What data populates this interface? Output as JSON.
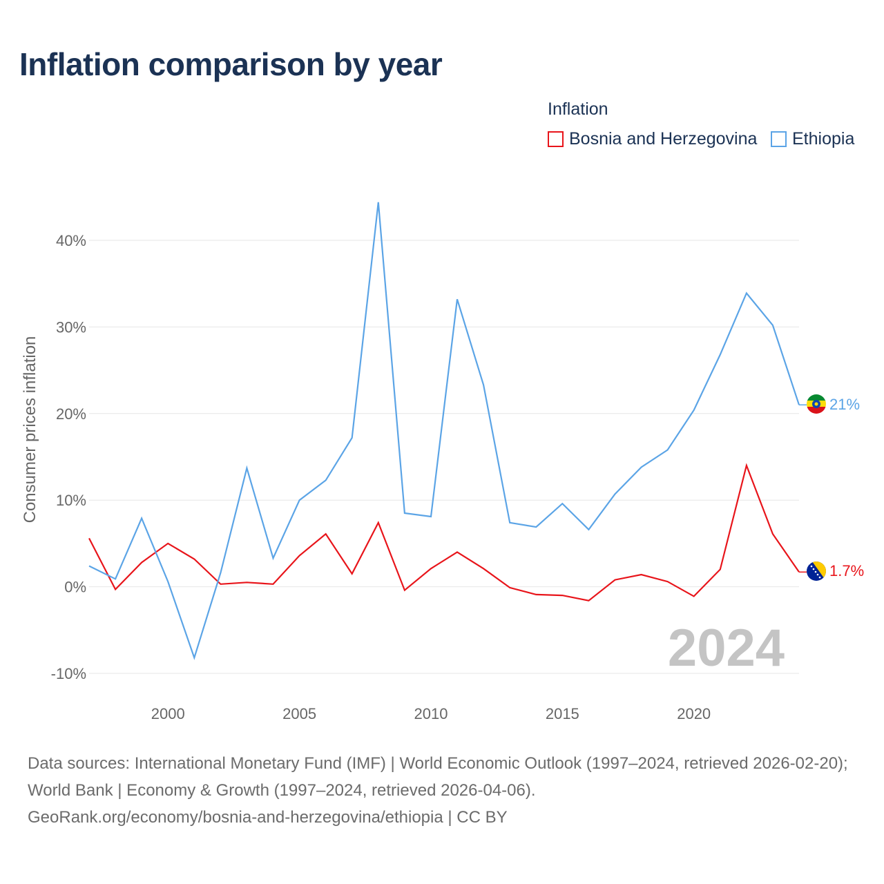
{
  "title": "Inflation comparison by year",
  "legend": {
    "title": "Inflation",
    "items": [
      {
        "label": "Bosnia and Herzegovina",
        "color": "#e8141a"
      },
      {
        "label": "Ethiopia",
        "color": "#5ba4e6"
      }
    ]
  },
  "footer": {
    "line1": "Data sources: International Monetary Fund (IMF) | World Economic Outlook (1997–2024, retrieved 2026-02-20); World Bank | Economy & Growth (1997–2024, retrieved 2026-04-06).",
    "line2": "GeoRank.org/economy/bosnia-and-herzegovina/ethiopia | CC BY"
  },
  "chart_data": {
    "type": "line",
    "title": "Inflation comparison by year",
    "xlabel": "",
    "ylabel": "Consumer prices inflation",
    "year_label": "2024",
    "xlim": [
      1997,
      2024
    ],
    "ylim": [
      -10,
      40
    ],
    "y_ticks": [
      {
        "value": 40,
        "label": "40%"
      },
      {
        "value": 30,
        "label": "30%"
      },
      {
        "value": 20,
        "label": "20%"
      },
      {
        "value": 10,
        "label": "10%"
      },
      {
        "value": 0,
        "label": "0%"
      },
      {
        "value": -10,
        "label": "-10%"
      }
    ],
    "x_ticks": [
      {
        "value": 2000,
        "label": "2000"
      },
      {
        "value": 2005,
        "label": "2005"
      },
      {
        "value": 2010,
        "label": "2010"
      },
      {
        "value": 2015,
        "label": "2015"
      },
      {
        "value": 2020,
        "label": "2020"
      }
    ],
    "x": [
      1997,
      1998,
      1999,
      2000,
      2001,
      2002,
      2003,
      2004,
      2005,
      2006,
      2007,
      2008,
      2009,
      2010,
      2011,
      2012,
      2013,
      2014,
      2015,
      2016,
      2017,
      2018,
      2019,
      2020,
      2021,
      2022,
      2023,
      2024
    ],
    "series": [
      {
        "name": "Bosnia and Herzegovina",
        "color": "#e8141a",
        "end_label": "1.7%",
        "values": [
          5.6,
          -0.3,
          2.8,
          5.0,
          3.2,
          0.3,
          0.5,
          0.3,
          3.6,
          6.1,
          1.5,
          7.4,
          -0.4,
          2.1,
          4.0,
          2.1,
          -0.1,
          -0.9,
          -1.0,
          -1.6,
          0.8,
          1.4,
          0.6,
          -1.1,
          2.0,
          14.0,
          6.1,
          1.7
        ]
      },
      {
        "name": "Ethiopia",
        "color": "#5ba4e6",
        "end_label": "21%",
        "values": [
          2.4,
          0.9,
          7.9,
          0.6,
          -8.2,
          1.6,
          13.7,
          3.3,
          10.0,
          12.3,
          17.2,
          44.4,
          8.5,
          8.1,
          33.2,
          23.3,
          7.4,
          6.9,
          9.6,
          6.6,
          10.7,
          13.8,
          15.8,
          20.4,
          26.8,
          33.9,
          30.2,
          21.0
        ]
      }
    ]
  }
}
